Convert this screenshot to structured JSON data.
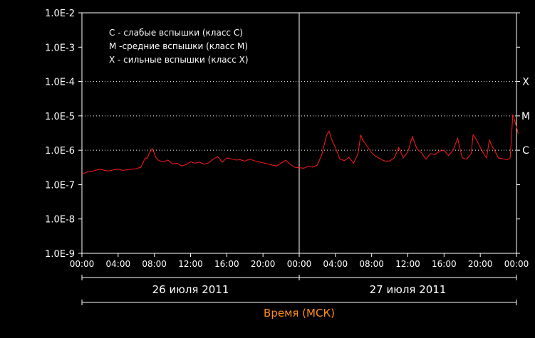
{
  "chart_data": {
    "type": "line",
    "title": "",
    "xlabel": "Время (МСК)",
    "ylabel": "",
    "yscale": "log",
    "ylim": [
      1e-09,
      0.01
    ],
    "xlim_hours": [
      0,
      48
    ],
    "grid": false,
    "background": "#000000",
    "colors": {
      "series": "#ff1a1a",
      "axis": "#ffffff",
      "xlabel": "#ff8c1a",
      "threshold_lines": "#ffffff"
    },
    "y_ticks": [
      "1.0E-9",
      "1.0E-8",
      "1.0E-7",
      "1.0E-6",
      "1.0E-5",
      "1.0E-4",
      "1.0E-3",
      "1.0E-2"
    ],
    "x_tick_labels": [
      "00:00",
      "04:00",
      "08:00",
      "12:00",
      "16:00",
      "20:00",
      "00:00",
      "04:00",
      "08:00",
      "12:00",
      "16:00",
      "20:00",
      "00:00"
    ],
    "day_labels": [
      {
        "label": "26 июля 2011",
        "from_hour": 0,
        "to_hour": 24
      },
      {
        "label": "27 июля 2011",
        "from_hour": 24,
        "to_hour": 48
      }
    ],
    "day_divider_hour": 24,
    "thresholds": [
      {
        "label": "X",
        "value": 0.0001
      },
      {
        "label": "M",
        "value": 1e-05
      },
      {
        "label": "C",
        "value": 1e-06
      }
    ],
    "legend": [
      "C - слабые вспышки (класс C)",
      "M -средние вспышки (класс M)",
      "X - сильные вспышки (класс X)"
    ],
    "legend_position": "top-left",
    "series": [
      {
        "x": [
          0,
          0.5,
          1,
          1.5,
          2,
          2.5,
          3,
          3.5,
          4,
          4.5,
          5,
          5.5,
          6,
          6.5,
          7,
          7.2,
          7.5,
          7.8,
          8,
          8.2,
          8.5,
          9,
          9.5,
          10,
          10.5,
          11,
          11.5,
          12,
          12.5,
          13,
          13.5,
          14,
          14.5,
          15,
          15.5,
          16,
          16.5,
          17,
          17.5,
          18,
          18.5,
          19,
          19.5,
          20,
          20.5,
          21,
          21.5,
          22,
          22.5,
          23,
          23.5,
          24,
          24.5,
          25,
          25.5,
          26,
          26.5,
          27,
          27.3,
          27.6,
          28,
          28.5,
          29,
          29.5,
          30,
          30.5,
          30.8,
          31,
          31.5,
          32,
          32.5,
          33,
          33.5,
          34,
          34.5,
          35,
          35.5,
          36,
          36.5,
          37,
          37.5,
          38,
          38.5,
          39,
          39.5,
          40,
          40.5,
          41,
          41.5,
          42,
          42.5,
          43,
          43.2,
          43.5,
          44,
          44.5,
          44.7,
          45,
          45.3,
          45.5,
          46,
          46.5,
          47,
          47.3,
          47.6,
          47.9,
          48.2
        ],
        "y": [
          2e-07,
          2.3e-07,
          2.4e-07,
          2.6e-07,
          2.8e-07,
          2.6e-07,
          2.5e-07,
          2.7e-07,
          2.8e-07,
          2.6e-07,
          2.7e-07,
          2.8e-07,
          2.9e-07,
          3.2e-07,
          6e-07,
          5.8e-07,
          9e-07,
          1.1e-06,
          8e-07,
          6e-07,
          5e-07,
          4.6e-07,
          5.2e-07,
          4e-07,
          4.2e-07,
          3.5e-07,
          3.8e-07,
          4.6e-07,
          4.2e-07,
          4.5e-07,
          3.9e-07,
          4.3e-07,
          5.5e-07,
          6.5e-07,
          4.5e-07,
          6e-07,
          5.6e-07,
          5.2e-07,
          5.3e-07,
          4.8e-07,
          5.5e-07,
          5e-07,
          4.6e-07,
          4.3e-07,
          4e-07,
          3.7e-07,
          3.5e-07,
          4.2e-07,
          5.1e-07,
          3.9e-07,
          3.2e-07,
          3.1e-07,
          3e-07,
          3.4e-07,
          3.2e-07,
          3.7e-07,
          7.5e-07,
          2.6e-06,
          3.6e-06,
          2e-06,
          1.2e-06,
          5.5e-07,
          5e-07,
          6.2e-07,
          4.2e-07,
          8e-07,
          2.8e-06,
          2e-06,
          1.3e-06,
          8.5e-07,
          6.5e-07,
          5.5e-07,
          4.8e-07,
          4.9e-07,
          6e-07,
          1.2e-06,
          6e-07,
          9e-07,
          2.5e-06,
          1.1e-06,
          8.5e-07,
          5.5e-07,
          8e-07,
          7.5e-07,
          9.5e-07,
          1e-06,
          7e-07,
          1e-06,
          2.2e-06,
          6e-07,
          5.5e-07,
          8e-07,
          2.8e-06,
          2.2e-06,
          1.2e-06,
          7e-07,
          6e-07,
          2e-06,
          1.3e-06,
          1.1e-06,
          6e-07,
          5.6e-07,
          5.3e-07,
          6e-07,
          1.1e-05,
          6e-06,
          3e-06
        ]
      }
    ]
  }
}
